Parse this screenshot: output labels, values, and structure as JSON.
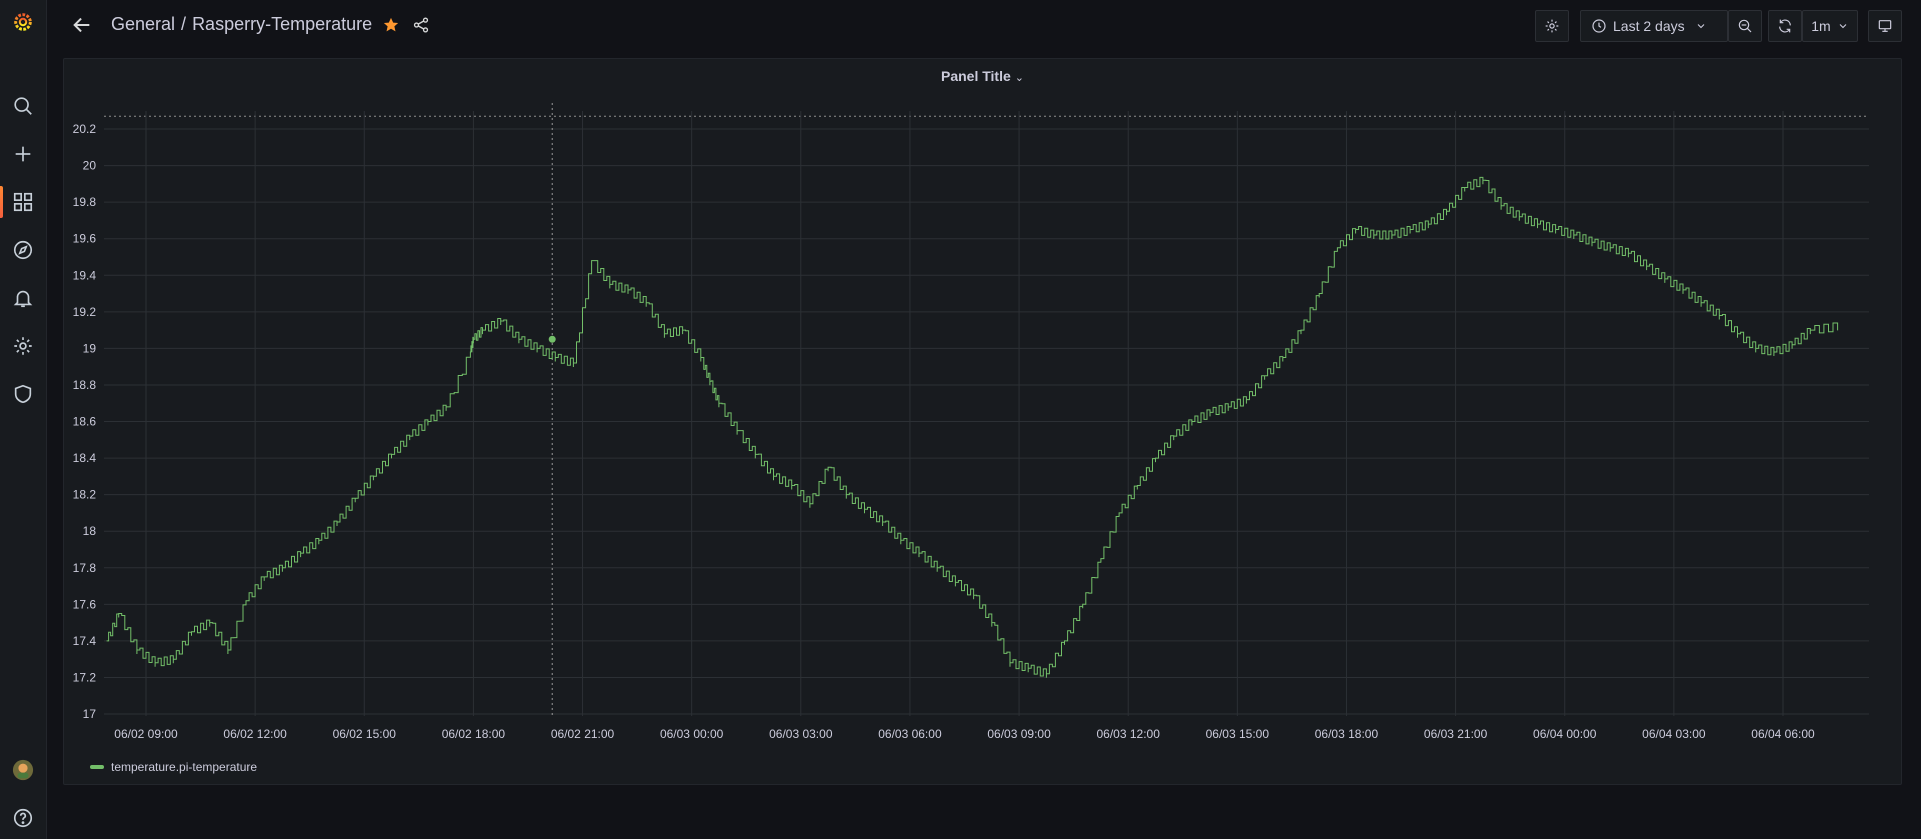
{
  "breadcrumb": {
    "folder": "General",
    "separator": "/",
    "dashboard": "Rasperry-Temperature"
  },
  "toolbar": {
    "time_range": "Last 2 days",
    "refresh_interval": "1m"
  },
  "sidebar": {
    "icons": [
      "grafana-logo-icon",
      "search-icon",
      "plus-icon",
      "dashboards-icon",
      "explore-compass-icon",
      "alerting-bell-icon",
      "gear-icon",
      "shield-icon",
      "avatar",
      "help-icon"
    ],
    "active": "dashboards-icon"
  },
  "colors": {
    "series": "#73bf69",
    "accent": "#f55f3e",
    "star": "#ff9830"
  },
  "panel": {
    "title": "Panel Title"
  },
  "chart_data": {
    "type": "line",
    "title": "Panel Title",
    "xlabel": "",
    "ylabel": "",
    "ylim": [
      16.95,
      20.3
    ],
    "x_ticks": [
      "06/02 09:00",
      "06/02 12:00",
      "06/02 15:00",
      "06/02 18:00",
      "06/02 21:00",
      "06/03 00:00",
      "06/03 03:00",
      "06/03 06:00",
      "06/03 09:00",
      "06/03 12:00",
      "06/03 15:00",
      "06/03 18:00",
      "06/03 21:00",
      "06/04 00:00",
      "06/04 03:00",
      "06/04 06:00"
    ],
    "y_ticks": [
      "17",
      "17.2",
      "17.4",
      "17.6",
      "17.8",
      "18",
      "18.2",
      "18.4",
      "18.6",
      "18.8",
      "19",
      "19.2",
      "19.4",
      "19.6",
      "19.8",
      "20",
      "20.2"
    ],
    "grid": true,
    "legend": "bottom-left",
    "series": [
      {
        "name": "temperature.pi-temperature",
        "x": [
          "06/02 07:55",
          "06/02 08:15",
          "06/02 08:45",
          "06/02 09:15",
          "06/02 09:45",
          "06/02 10:15",
          "06/02 10:45",
          "06/02 11:15",
          "06/02 11:45",
          "06/02 12:15",
          "06/02 12:45",
          "06/02 13:15",
          "06/02 13:45",
          "06/02 14:15",
          "06/02 14:45",
          "06/02 15:15",
          "06/02 15:45",
          "06/02 16:15",
          "06/02 16:45",
          "06/02 17:15",
          "06/02 17:55",
          "06/02 18:00",
          "06/02 18:15",
          "06/02 18:45",
          "06/02 19:15",
          "06/02 19:45",
          "06/02 20:15",
          "06/02 20:45",
          "06/02 21:15",
          "06/02 21:45",
          "06/02 22:15",
          "06/02 22:45",
          "06/02 23:15",
          "06/02 23:45",
          "06/03 00:15",
          "06/03 00:30",
          "06/03 00:45",
          "06/03 01:15",
          "06/03 01:45",
          "06/03 02:15",
          "06/03 02:45",
          "06/03 03:15",
          "06/03 03:45",
          "06/03 04:15",
          "06/03 04:45",
          "06/03 05:15",
          "06/03 05:45",
          "06/03 06:15",
          "06/03 06:45",
          "06/03 07:15",
          "06/03 07:45",
          "06/03 08:15",
          "06/03 08:45",
          "06/03 09:15",
          "06/03 09:45",
          "06/03 10:15",
          "06/03 10:45",
          "06/03 11:15",
          "06/03 11:45",
          "06/03 12:15",
          "06/03 12:45",
          "06/03 13:15",
          "06/03 13:45",
          "06/03 14:15",
          "06/03 14:45",
          "06/03 15:15",
          "06/03 15:45",
          "06/03 16:15",
          "06/03 16:45",
          "06/03 17:15",
          "06/03 17:45",
          "06/03 18:15",
          "06/03 18:45",
          "06/03 19:15",
          "06/03 19:45",
          "06/03 20:15",
          "06/03 20:45",
          "06/03 21:15",
          "06/03 21:45",
          "06/03 22:15",
          "06/03 22:45",
          "06/03 23:15",
          "06/03 23:45",
          "06/04 00:15",
          "06/04 00:45",
          "06/04 01:15",
          "06/04 01:45",
          "06/04 02:15",
          "06/04 02:45",
          "06/04 03:15",
          "06/04 03:45",
          "06/04 04:15",
          "06/04 04:45",
          "06/04 05:15",
          "06/04 05:45",
          "06/04 06:15",
          "06/04 06:45",
          "06/04 07:30"
        ],
        "y": [
          17.4,
          17.55,
          17.35,
          17.28,
          17.3,
          17.45,
          17.5,
          17.35,
          17.62,
          17.75,
          17.8,
          17.88,
          17.95,
          18.05,
          18.18,
          18.3,
          18.42,
          18.52,
          18.6,
          18.68,
          18.98,
          19.05,
          19.1,
          19.15,
          19.05,
          19.0,
          18.95,
          18.92,
          19.48,
          19.35,
          19.32,
          19.25,
          19.08,
          19.1,
          18.95,
          18.82,
          18.7,
          18.55,
          18.42,
          18.3,
          18.25,
          18.15,
          18.35,
          18.2,
          18.12,
          18.05,
          17.95,
          17.88,
          17.8,
          17.72,
          17.65,
          17.5,
          17.28,
          17.25,
          17.22,
          17.4,
          17.6,
          17.85,
          18.1,
          18.25,
          18.4,
          18.52,
          18.6,
          18.65,
          18.68,
          18.72,
          18.85,
          18.95,
          19.1,
          19.3,
          19.55,
          19.65,
          19.62,
          19.62,
          19.65,
          19.68,
          19.75,
          19.88,
          19.92,
          19.78,
          19.72,
          19.68,
          19.65,
          19.62,
          19.58,
          19.55,
          19.52,
          19.45,
          19.38,
          19.32,
          19.25,
          19.18,
          19.08,
          19.0,
          18.98,
          19.02,
          19.1,
          19.12
        ]
      }
    ]
  }
}
